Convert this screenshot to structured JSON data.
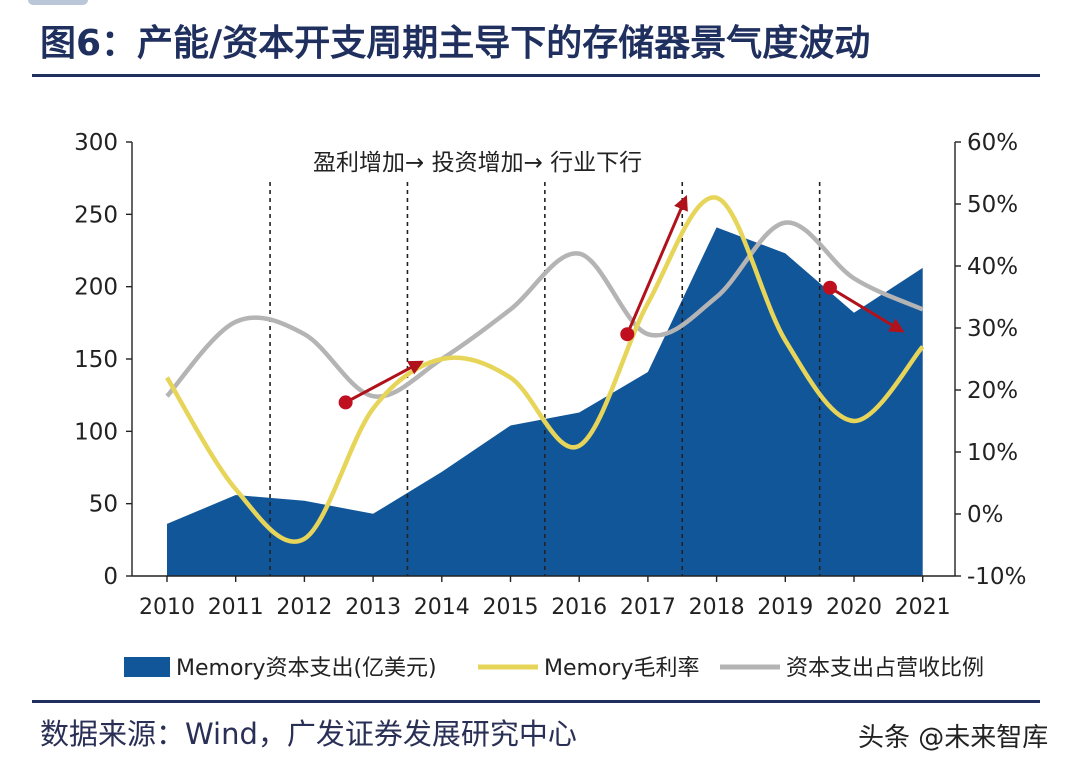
{
  "header": {
    "title": "图6：产能/资本开支周期主导下的存储器景气度波动"
  },
  "footer": {
    "source": "数据来源：Wind，广发证券发展研究中心",
    "watermark": "头条 @未来智库"
  },
  "colors": {
    "title": "#1f2f5e",
    "area": "#12569a",
    "gross_margin": "#e7d55a",
    "capex_ratio": "#b4b4b4",
    "arrow": "#b0121b",
    "marker": "#c01020"
  },
  "chart_data": {
    "type": "area+line",
    "title": "产能/资本开支周期主导下的存储器景气度波动",
    "categories": [
      "2010",
      "2011",
      "2012",
      "2013",
      "2014",
      "2015",
      "2016",
      "2017",
      "2018",
      "2019",
      "2020",
      "2021"
    ],
    "left_axis": {
      "min": 0,
      "max": 300,
      "ticks": [
        0,
        50,
        100,
        150,
        200,
        250,
        300
      ],
      "labels": [
        "0",
        "50",
        "100",
        "150",
        "200",
        "250",
        "300"
      ]
    },
    "right_axis": {
      "min": -10,
      "max": 60,
      "ticks": [
        -10,
        0,
        10,
        20,
        30,
        40,
        50,
        60
      ],
      "labels": [
        "-10%",
        "0%",
        "10%",
        "20%",
        "30%",
        "40%",
        "50%",
        "60%"
      ]
    },
    "series": [
      {
        "name": "Memory资本支出(亿美元)",
        "type": "area",
        "axis": "left",
        "values": [
          36,
          56,
          52,
          43,
          72,
          104,
          113,
          141,
          241,
          223,
          182,
          213
        ]
      },
      {
        "name": "Memory毛利率",
        "type": "line",
        "axis": "right",
        "smooth": true,
        "values": [
          22,
          4,
          -4,
          17,
          25,
          22,
          11,
          34,
          51,
          28,
          15,
          27
        ]
      },
      {
        "name": "资本支出占营收比例",
        "type": "line",
        "axis": "right",
        "smooth": true,
        "values": [
          19,
          31,
          29,
          19,
          25,
          33,
          42,
          29,
          35,
          47,
          38,
          33
        ]
      }
    ],
    "vlines_at": [
      1.5,
      3.5,
      5.5,
      7.5,
      9.5
    ],
    "annotations": [
      {
        "text": "盈利增加→ 投资增加→ 行业下行"
      }
    ],
    "arrows": [
      {
        "from": {
          "x": 2.6,
          "y": 18
        },
        "to": {
          "x": 3.7,
          "y": 24.5
        }
      },
      {
        "from": {
          "x": 6.7,
          "y": 29
        },
        "to": {
          "x": 7.55,
          "y": 51
        }
      },
      {
        "from": {
          "x": 9.65,
          "y": 36.5
        },
        "to": {
          "x": 10.7,
          "y": 29.5
        }
      }
    ]
  }
}
